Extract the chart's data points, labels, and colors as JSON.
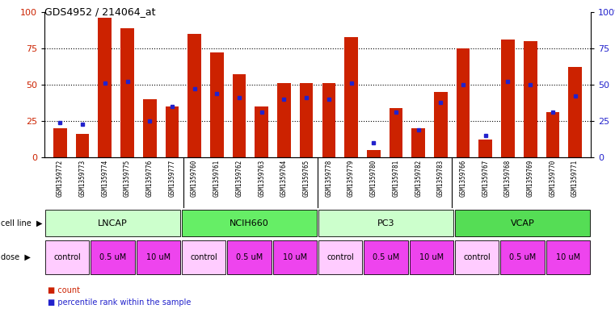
{
  "title": "GDS4952 / 214064_at",
  "samples": [
    "GSM1359772",
    "GSM1359773",
    "GSM1359774",
    "GSM1359775",
    "GSM1359776",
    "GSM1359777",
    "GSM1359760",
    "GSM1359761",
    "GSM1359762",
    "GSM1359763",
    "GSM1359764",
    "GSM1359765",
    "GSM1359778",
    "GSM1359779",
    "GSM1359780",
    "GSM1359781",
    "GSM1359782",
    "GSM1359783",
    "GSM1359766",
    "GSM1359767",
    "GSM1359768",
    "GSM1359769",
    "GSM1359770",
    "GSM1359771"
  ],
  "counts": [
    20,
    16,
    96,
    89,
    40,
    35,
    85,
    72,
    57,
    35,
    51,
    51,
    51,
    83,
    5,
    34,
    20,
    45,
    75,
    12,
    81,
    80,
    31,
    62
  ],
  "percentiles": [
    24,
    23,
    51,
    52,
    25,
    35,
    47,
    44,
    41,
    31,
    40,
    41,
    40,
    51,
    10,
    31,
    19,
    38,
    50,
    15,
    52,
    50,
    31,
    42
  ],
  "cell_lines": [
    {
      "name": "LNCAP",
      "start": 0,
      "end": 6,
      "color": "#ccffcc"
    },
    {
      "name": "NCIH660",
      "start": 6,
      "end": 12,
      "color": "#66ee66"
    },
    {
      "name": "PC3",
      "start": 12,
      "end": 18,
      "color": "#ccffcc"
    },
    {
      "name": "VCAP",
      "start": 18,
      "end": 24,
      "color": "#55dd55"
    }
  ],
  "dose_groups": [
    {
      "label": "control",
      "start": 0,
      "end": 2,
      "color": "#ffccff"
    },
    {
      "label": "0.5 uM",
      "start": 2,
      "end": 4,
      "color": "#ee44ee"
    },
    {
      "label": "10 uM",
      "start": 4,
      "end": 6,
      "color": "#ee44ee"
    },
    {
      "label": "control",
      "start": 6,
      "end": 8,
      "color": "#ffccff"
    },
    {
      "label": "0.5 uM",
      "start": 8,
      "end": 10,
      "color": "#ee44ee"
    },
    {
      "label": "10 uM",
      "start": 10,
      "end": 12,
      "color": "#ee44ee"
    },
    {
      "label": "control",
      "start": 12,
      "end": 14,
      "color": "#ffccff"
    },
    {
      "label": "0.5 uM",
      "start": 14,
      "end": 16,
      "color": "#ee44ee"
    },
    {
      "label": "10 uM",
      "start": 16,
      "end": 18,
      "color": "#ee44ee"
    },
    {
      "label": "control",
      "start": 18,
      "end": 20,
      "color": "#ffccff"
    },
    {
      "label": "0.5 uM",
      "start": 20,
      "end": 22,
      "color": "#ee44ee"
    },
    {
      "label": "10 uM",
      "start": 22,
      "end": 24,
      "color": "#ee44ee"
    }
  ],
  "bar_color": "#cc2200",
  "dot_color": "#2222cc",
  "left_axis_color": "#cc2200",
  "right_axis_color": "#2222cc",
  "background_color": "#ffffff",
  "tick_bg_color": "#cccccc",
  "ylim": [
    0,
    100
  ],
  "legend_count": "count",
  "legend_pct": "percentile rank within the sample",
  "cell_line_label": "cell line",
  "dose_label": "dose"
}
